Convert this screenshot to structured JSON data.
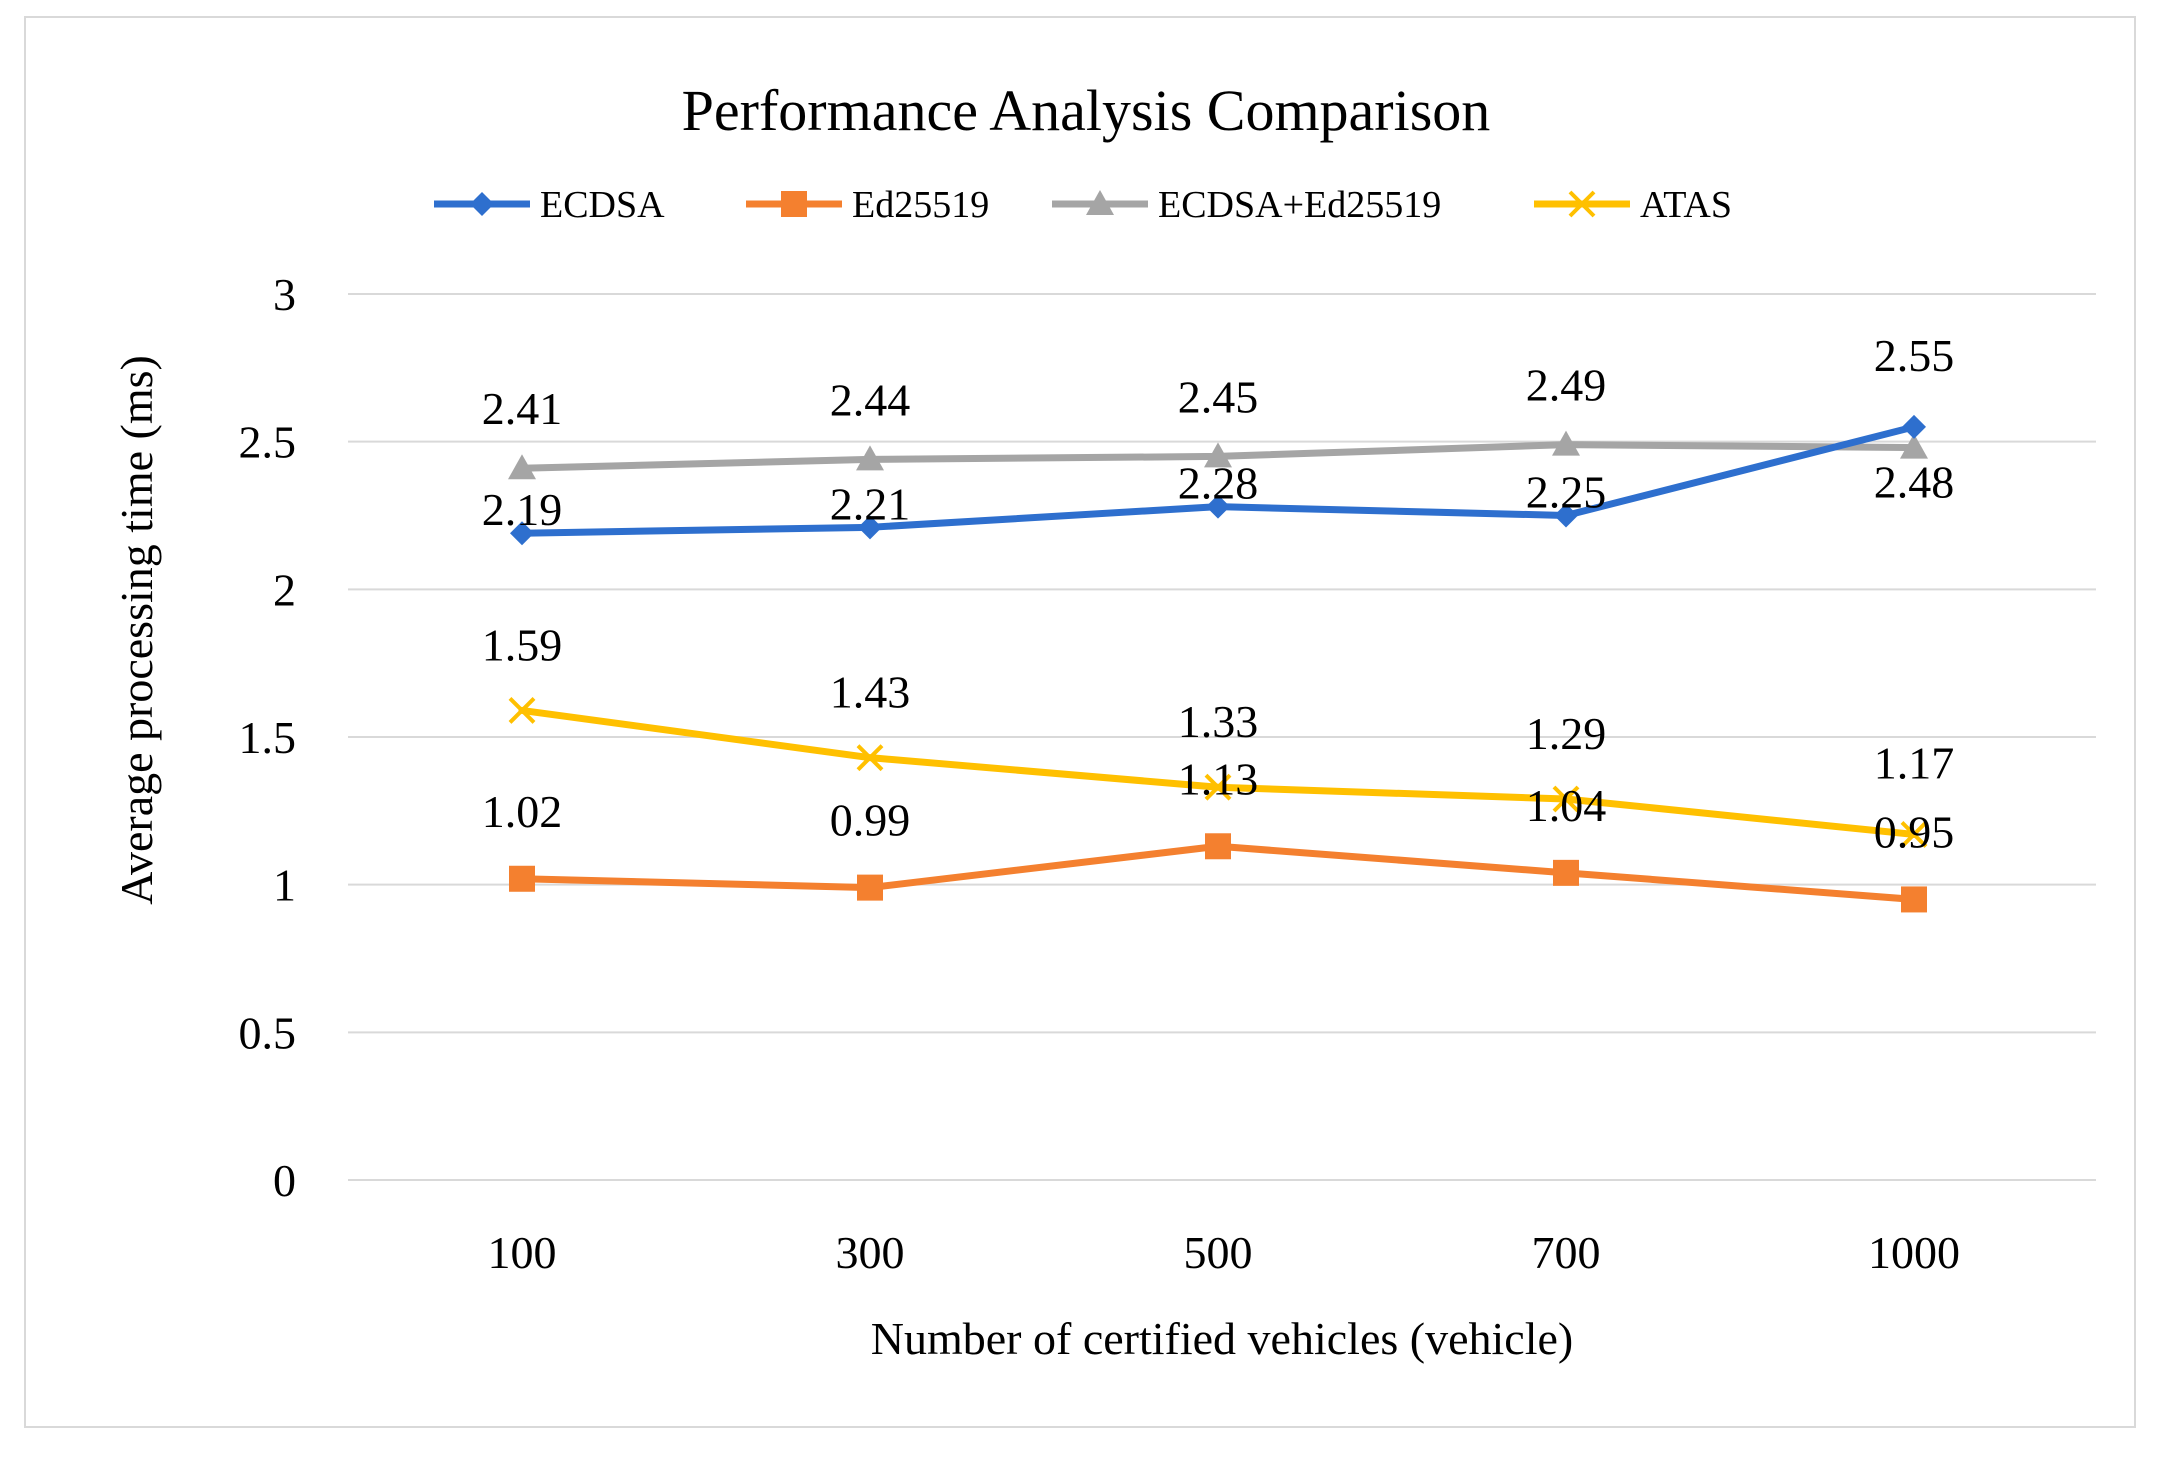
{
  "chart_data": {
    "type": "line",
    "title": "Performance Analysis Comparison",
    "xlabel": "Number of certified vehicles (vehicle)",
    "ylabel": "Average processing time (ms)",
    "categories": [
      "100",
      "300",
      "500",
      "700",
      "1000"
    ],
    "ylim": [
      0,
      3
    ],
    "yticks": [
      "0",
      "0.5",
      "1",
      "1.5",
      "2",
      "2.5",
      "3"
    ],
    "grid": true,
    "legend_position": "top",
    "series": [
      {
        "name": "ECDSA",
        "color": "#2e6fce",
        "marker": "diamond",
        "values": [
          2.19,
          2.21,
          2.28,
          2.25,
          2.55
        ],
        "labels": [
          "2.19",
          "2.21",
          "2.28",
          "2.25",
          "2.55"
        ]
      },
      {
        "name": "Ed25519",
        "color": "#f4802f",
        "marker": "square",
        "values": [
          1.02,
          0.99,
          1.13,
          1.04,
          0.95
        ],
        "labels": [
          "1.02",
          "0.99",
          "1.13",
          "1.04",
          "0.95"
        ]
      },
      {
        "name": "ECDSA+Ed25519",
        "color": "#a5a5a5",
        "marker": "triangle",
        "values": [
          2.41,
          2.44,
          2.45,
          2.49,
          2.48
        ],
        "labels": [
          "2.41",
          "2.44",
          "2.45",
          "2.49",
          "2.48"
        ]
      },
      {
        "name": "ATAS",
        "color": "#ffc000",
        "marker": "x",
        "values": [
          1.59,
          1.43,
          1.33,
          1.29,
          1.17
        ],
        "labels": [
          "1.59",
          "1.43",
          "1.33",
          "1.29",
          "1.17"
        ]
      }
    ]
  }
}
